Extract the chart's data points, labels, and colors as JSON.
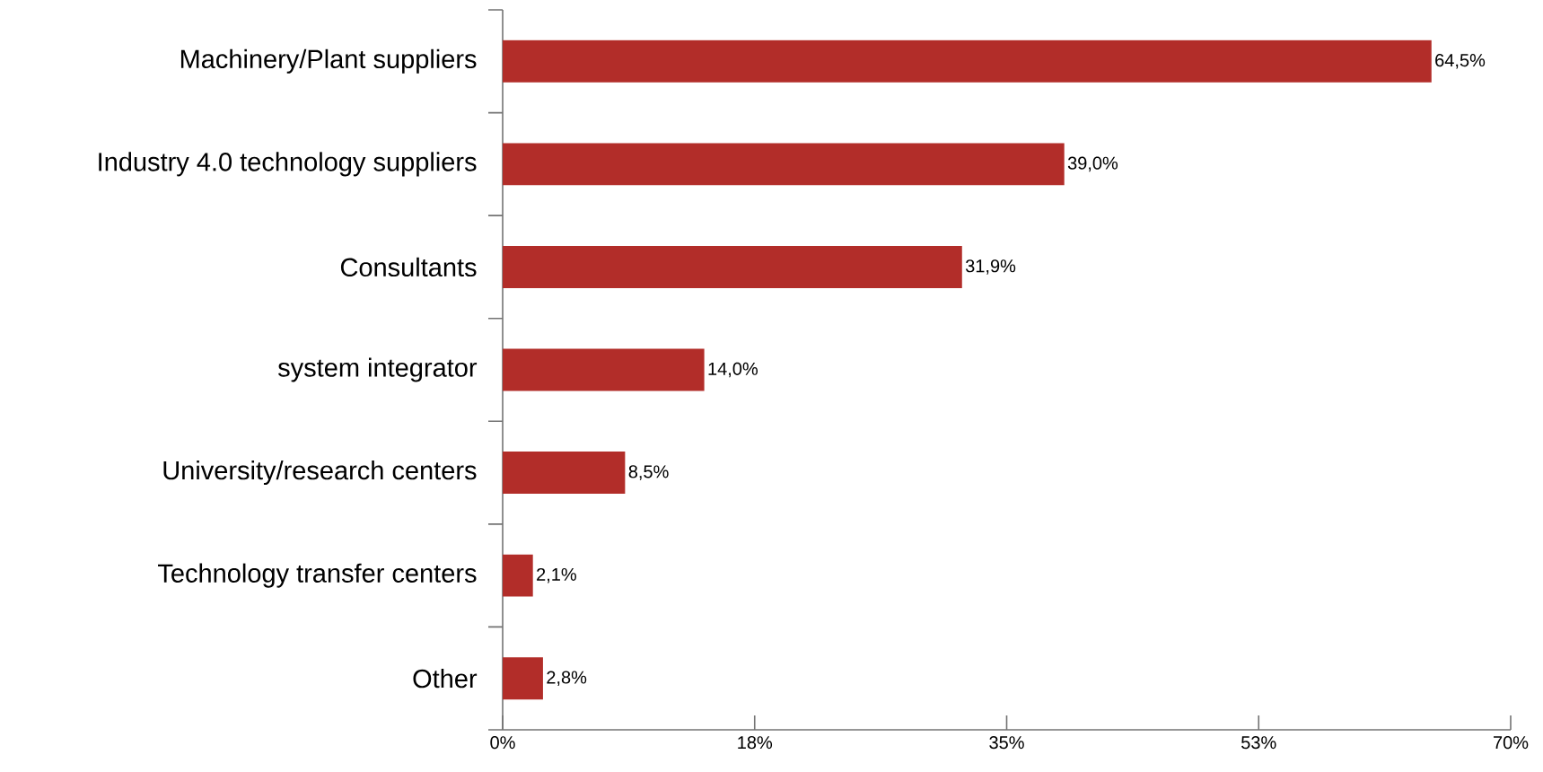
{
  "chart_data": {
    "type": "bar",
    "orientation": "horizontal",
    "categories": [
      "Machinery/Plant suppliers",
      "Industry 4.0 technology suppliers",
      "Consultants",
      "system integrator",
      "University/research centers",
      "Technology transfer centers",
      "Other"
    ],
    "values": [
      64.5,
      39.0,
      31.9,
      14.0,
      8.5,
      2.1,
      2.8
    ],
    "value_labels": [
      "64,5%",
      "39,0%",
      "31,9%",
      "14,0%",
      "8,5%",
      "2,1%",
      "2,8%"
    ],
    "color": "#b22d29",
    "xlim": [
      0,
      70
    ],
    "xticks": [
      {
        "value": 0,
        "label": "0%"
      },
      {
        "value": 17.5,
        "label": "18%"
      },
      {
        "value": 35,
        "label": "35%"
      },
      {
        "value": 52.5,
        "label": "53%"
      },
      {
        "value": 70,
        "label": "70%"
      }
    ],
    "grid": false
  }
}
